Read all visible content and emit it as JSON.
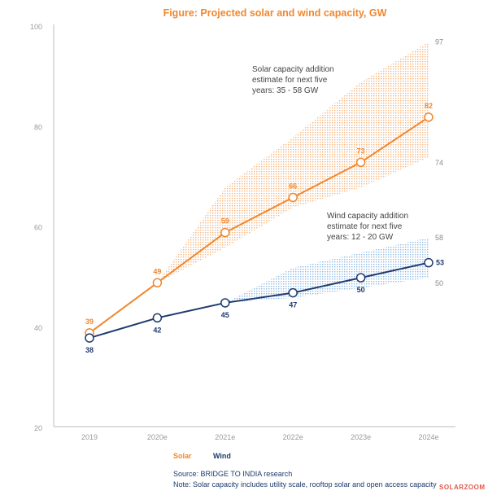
{
  "chart_data": {
    "type": "line",
    "title": "Figure: Projected solar and wind capacity, GW",
    "categories": [
      "2019",
      "2020e",
      "2021e",
      "2022e",
      "2023e",
      "2024e"
    ],
    "ylim": [
      20,
      100
    ],
    "yticks": [
      20,
      40,
      60,
      80,
      100
    ],
    "grid": false,
    "legend_position": "bottom-left",
    "series": [
      {
        "name": "Solar",
        "color": "#f0872e",
        "values": [
          39,
          49,
          59,
          66,
          73,
          82
        ],
        "labels": [
          "39",
          "49",
          "59",
          "66",
          "73",
          "82"
        ],
        "range": {
          "start_index": 1,
          "upper": [
            49,
            68,
            78,
            89,
            97
          ],
          "lower": [
            49,
            56,
            64,
            68,
            74
          ],
          "end_labels": {
            "upper": "97",
            "lower": "74"
          },
          "color": "#f4a86a"
        }
      },
      {
        "name": "Wind",
        "color": "#1f3a6e",
        "values": [
          38,
          42,
          45,
          47,
          50,
          53
        ],
        "labels": [
          "38",
          "42",
          "45",
          "47",
          "50",
          "53"
        ],
        "range": {
          "start_index": 2,
          "upper": [
            45,
            52,
            55,
            58
          ],
          "lower": [
            45,
            46,
            48,
            50
          ],
          "end_labels": {
            "upper": "58",
            "lower": "50"
          },
          "color": "#7fb0e0"
        }
      }
    ],
    "annotations": [
      {
        "lines": [
          "Solar capacity addition",
          "estimate for next five",
          "years: 35 - 58 GW"
        ]
      },
      {
        "lines": [
          "Wind capacity addition",
          "estimate for next five",
          "years: 12 - 20 GW"
        ]
      }
    ]
  },
  "footer": {
    "source": "Source: BRIDGE TO INDIA research",
    "note": "Note: Solar capacity includes utility scale, rooftop solar and open access capacity"
  },
  "watermark": "SOLARZOOM"
}
